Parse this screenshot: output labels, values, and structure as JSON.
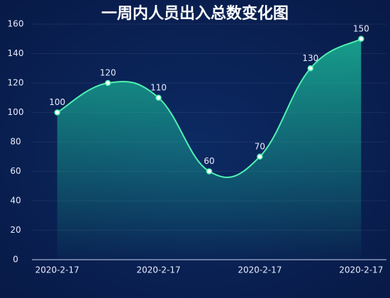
{
  "chart_data": {
    "type": "line",
    "title": "一周内人员出入总数变化图",
    "categories": [
      "2020-2-17",
      null,
      "2020-2-17",
      null,
      "2020-2-17",
      null,
      "2020-2-17"
    ],
    "values": [
      100,
      120,
      110,
      60,
      70,
      130,
      150
    ],
    "color": "#4ff0b0",
    "smooth": true,
    "area": true,
    "ylim": [
      0,
      160
    ],
    "yticks": [
      0,
      20,
      40,
      60,
      80,
      100,
      120,
      140,
      160
    ],
    "grid": true
  }
}
